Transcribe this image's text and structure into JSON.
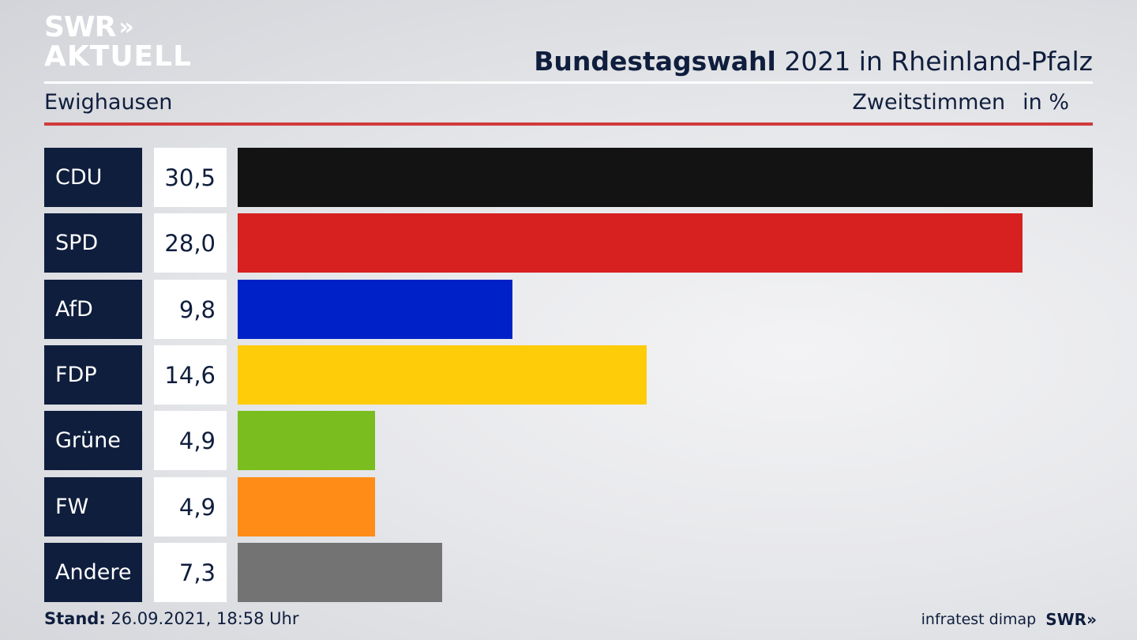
{
  "logo": {
    "line1": "SWR",
    "chevrons": "»",
    "line2": "AKTUELL"
  },
  "header": {
    "title_bold": "Bundestagswahl",
    "title_rest": " 2021 in Rheinland-Pfalz",
    "location": "Ewighausen",
    "vote_type": "Zweitstimmen",
    "unit": "in %"
  },
  "colors": {
    "navy": "#0f1e3d",
    "red_rule": "#cf3b3b"
  },
  "chart_data": {
    "type": "bar",
    "orientation": "horizontal",
    "title": "Bundestagswahl 2021 in Rheinland-Pfalz",
    "subtitle": "Ewighausen",
    "xlabel": "Zweitstimmen in %",
    "xlim": [
      0,
      30.5
    ],
    "categories": [
      "CDU",
      "SPD",
      "AfD",
      "FDP",
      "Grüne",
      "FW",
      "Andere"
    ],
    "values": [
      30.5,
      28.0,
      9.8,
      14.6,
      4.9,
      4.9,
      7.3
    ],
    "value_labels": [
      "30,5",
      "28,0",
      "9,8",
      "14,6",
      "4,9",
      "4,9",
      "7,3"
    ],
    "colors": [
      "#131313",
      "#d72020",
      "#0021c8",
      "#ffcc0a",
      "#7abd1e",
      "#ff8c17",
      "#737373"
    ]
  },
  "footer": {
    "stand_label": "Stand:",
    "stand_value": " 26.09.2021, 18:58 Uhr",
    "source": "infratest dimap",
    "brand": "SWR",
    "brand_chevrons": "»"
  }
}
